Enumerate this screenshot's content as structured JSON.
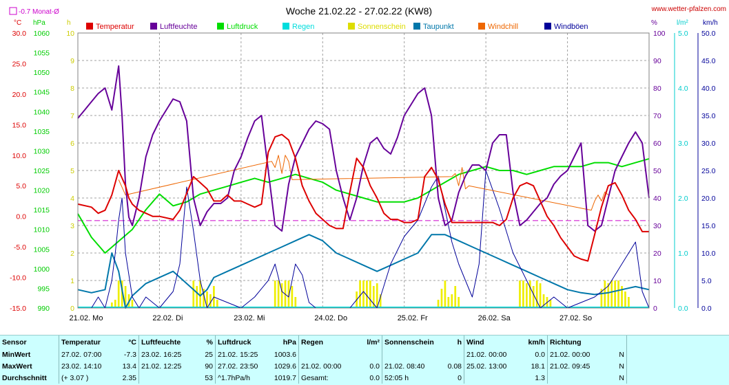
{
  "header": {
    "title": "Woche 21.02.22 - 27.02.22 (KW8)",
    "site": "www.wetter-pfalzen.com",
    "avg_note": "-0.7 Monat-Ø"
  },
  "axes": {
    "left_units": [
      "°C",
      "hPa",
      "h"
    ],
    "right_units": [
      "%",
      "l/m²",
      "km/h"
    ]
  },
  "legend": [
    {
      "label": "Temperatur",
      "color": "#dd0000"
    },
    {
      "label": "Luftfeuchte",
      "color": "#660099"
    },
    {
      "label": "Luftdruck",
      "color": "#00dd00"
    },
    {
      "label": "Regen",
      "color": "#00dddd"
    },
    {
      "label": "Sonnenschein",
      "color": "#dddd00"
    },
    {
      "label": "Taupunkt",
      "color": "#0077aa"
    },
    {
      "label": "Windchill",
      "color": "#ee6600"
    },
    {
      "label": "Windböen",
      "color": "#000099"
    }
  ],
  "chart_data": {
    "type": "line",
    "title": "Woche 21.02.22 - 27.02.22 (KW8)",
    "x": {
      "range_hours": [
        0,
        168
      ],
      "day_labels": [
        "21.02. Mo",
        "22.02. Di",
        "23.02. Mi",
        "24.02. Do",
        "25.02. Fr",
        "26.02. Sa",
        "27.02. So"
      ]
    },
    "axes": {
      "temperature_c": {
        "ticks": [
          "30.0",
          "25.0",
          "20.0",
          "15.0",
          "10.0",
          "5.0",
          "0.0",
          "-5.0",
          "-10.0",
          "-15.0"
        ],
        "range": [
          -15,
          30
        ],
        "color": "#dd0000"
      },
      "pressure_hpa": {
        "ticks": [
          "1060",
          "1055",
          "1050",
          "1045",
          "1040",
          "1035",
          "1030",
          "1025",
          "1020",
          "1015",
          "1010",
          "1005",
          "1000",
          "995",
          "990"
        ],
        "range": [
          990,
          1060
        ],
        "color": "#00cc00"
      },
      "sunshine_h": {
        "ticks": [
          "10",
          "9",
          "8",
          "7",
          "6",
          "5",
          "4",
          "3",
          "2",
          "1",
          "0"
        ],
        "range": [
          0,
          10
        ],
        "color": "#cccc00"
      },
      "humidity_pct": {
        "ticks": [
          "100",
          "90",
          "80",
          "70",
          "60",
          "50",
          "40",
          "30",
          "20",
          "10",
          "0"
        ],
        "range": [
          0,
          100
        ],
        "color": "#660099"
      },
      "rain_lm2": {
        "ticks": [
          "5.0",
          "4.0",
          "3.0",
          "2.0",
          "1.0",
          "0.0"
        ],
        "range": [
          0,
          5
        ],
        "color": "#00cccc"
      },
      "wind_kmh": {
        "ticks": [
          "50.0",
          "45.0",
          "40.0",
          "35.0",
          "30.0",
          "25.0",
          "20.0",
          "15.0",
          "10.0",
          "5.0",
          "0.0"
        ],
        "range": [
          0,
          50
        ],
        "color": "#000099"
      }
    },
    "monthly_avg_temp": -0.7,
    "series": [
      {
        "name": "Temperatur",
        "color": "#dd0000",
        "axis": "temperature_c",
        "x": [
          0,
          4,
          6,
          8,
          10,
          12,
          14,
          15,
          16,
          18,
          20,
          22,
          24,
          28,
          30,
          34,
          38,
          40,
          42,
          44,
          46,
          48,
          50,
          52,
          54,
          56,
          58,
          60,
          62,
          64,
          66,
          68,
          70,
          72,
          74,
          76,
          78,
          80,
          82,
          84,
          86,
          88,
          90,
          92,
          94,
          96,
          98,
          100,
          102,
          104,
          106,
          108,
          110,
          112,
          114,
          116,
          118,
          120,
          122,
          124,
          126,
          128,
          130,
          132,
          134,
          136,
          138,
          140,
          142,
          144,
          146,
          148,
          150,
          152,
          154,
          156,
          158,
          160,
          162,
          164,
          166,
          168
        ],
        "y": [
          2.0,
          1.5,
          0.5,
          1.0,
          3.5,
          7.5,
          5.0,
          3.0,
          2.0,
          1.0,
          0.5,
          0.0,
          0.0,
          -0.5,
          1.0,
          6.5,
          4.5,
          2.5,
          2.5,
          3.5,
          2.5,
          2.5,
          2.0,
          1.5,
          2.0,
          10.5,
          13.0,
          13.4,
          12.5,
          9.5,
          5.0,
          2.5,
          0.5,
          -0.5,
          -1.5,
          -2.0,
          -2.0,
          4.0,
          9.5,
          8.0,
          5.0,
          3.0,
          0.5,
          -0.5,
          -0.5,
          -1.0,
          -1.0,
          -0.5,
          6.5,
          8.0,
          6.0,
          2.0,
          -1.0,
          -1.0,
          -1.0,
          -1.0,
          -1.0,
          -1.0,
          -1.0,
          -1.5,
          -0.5,
          3.0,
          5.0,
          5.5,
          5.0,
          2.5,
          0.0,
          -1.5,
          -3.5,
          -5.0,
          -6.5,
          -7.0,
          -7.3,
          -3.0,
          1.5,
          5.0,
          5.5,
          3.5,
          1.0,
          -0.5,
          -2.5,
          -2.5
        ]
      },
      {
        "name": "Luftfeuchte",
        "color": "#660099",
        "axis": "humidity_pct",
        "x": [
          0,
          2,
          4,
          6,
          8,
          10,
          12,
          13,
          14,
          15,
          16,
          18,
          20,
          22,
          24,
          26,
          28,
          30,
          32,
          34,
          36,
          38,
          40,
          42,
          44,
          46,
          48,
          50,
          52,
          54,
          56,
          58,
          60,
          62,
          64,
          66,
          68,
          70,
          72,
          74,
          76,
          78,
          80,
          82,
          84,
          86,
          88,
          90,
          92,
          94,
          96,
          98,
          100,
          102,
          104,
          106,
          108,
          110,
          112,
          114,
          116,
          118,
          120,
          122,
          124,
          126,
          128,
          130,
          132,
          134,
          136,
          138,
          140,
          142,
          144,
          146,
          148,
          150,
          152,
          154,
          156,
          158,
          160,
          162,
          164,
          166,
          168
        ],
        "y": [
          69,
          72,
          75,
          78,
          80,
          72,
          88,
          70,
          45,
          33,
          30,
          40,
          55,
          63,
          68,
          72,
          76,
          75,
          68,
          40,
          30,
          35,
          38,
          38,
          40,
          50,
          55,
          62,
          68,
          70,
          50,
          30,
          28,
          45,
          55,
          60,
          65,
          68,
          67,
          65,
          50,
          40,
          32,
          40,
          52,
          60,
          62,
          58,
          56,
          62,
          70,
          74,
          78,
          80,
          70,
          40,
          30,
          32,
          42,
          48,
          52,
          52,
          50,
          60,
          63,
          63,
          42,
          30,
          32,
          35,
          38,
          40,
          45,
          48,
          50,
          55,
          60,
          30,
          28,
          30,
          40,
          50,
          55,
          60,
          64,
          60,
          40
        ]
      },
      {
        "name": "Luftdruck",
        "color": "#00dd00",
        "axis": "pressure_hpa",
        "x": [
          0,
          4,
          8,
          12,
          16,
          20,
          24,
          28,
          32,
          36,
          40,
          44,
          48,
          52,
          56,
          60,
          64,
          68,
          72,
          76,
          80,
          84,
          88,
          92,
          96,
          100,
          104,
          108,
          112,
          116,
          120,
          124,
          128,
          132,
          136,
          140,
          144,
          148,
          152,
          156,
          160,
          164,
          168
        ],
        "y": [
          1014,
          1008,
          1004,
          1007,
          1010,
          1015,
          1019,
          1016,
          1017,
          1019,
          1020,
          1021,
          1022,
          1023,
          1022,
          1023,
          1024,
          1023,
          1022,
          1020,
          1019,
          1018,
          1017,
          1017,
          1017,
          1018,
          1020,
          1022,
          1024,
          1025,
          1026,
          1025,
          1025,
          1024,
          1025,
          1026,
          1026,
          1026,
          1027,
          1027,
          1026,
          1027,
          1028
        ]
      },
      {
        "name": "Taupunkt",
        "color": "#0077aa",
        "axis": "temperature_c",
        "x": [
          0,
          4,
          8,
          10,
          12,
          14,
          16,
          18,
          20,
          24,
          28,
          32,
          34,
          36,
          38,
          40,
          44,
          48,
          52,
          56,
          60,
          64,
          68,
          72,
          76,
          80,
          84,
          88,
          92,
          96,
          100,
          104,
          108,
          112,
          116,
          120,
          124,
          128,
          132,
          136,
          140,
          144,
          148,
          152,
          156,
          160,
          164,
          168
        ],
        "y": [
          -12,
          -12.5,
          -12,
          -6,
          -9,
          -15,
          -13,
          -12,
          -11,
          -10,
          -9,
          -11,
          -12,
          -13,
          -12,
          -10,
          -9,
          -8,
          -7,
          -6,
          -5,
          -4,
          -3,
          -4,
          -6,
          -7,
          -8,
          -9,
          -8,
          -7,
          -6,
          -3,
          -3,
          -4,
          -5,
          -6,
          -7,
          -8,
          -9,
          -10,
          -11,
          -12,
          -12.5,
          -12.8,
          -12.5,
          -12,
          -11.5,
          -12
        ]
      },
      {
        "name": "Windchill",
        "color": "#ee6600",
        "axis": "temperature_c",
        "x": [
          12,
          14,
          57,
          58,
          59,
          60,
          61,
          62,
          63,
          110,
          111,
          112,
          113,
          114,
          115,
          151,
          152,
          153,
          154,
          155,
          156
        ],
        "y": [
          6.0,
          3.5,
          9.0,
          8.0,
          10.0,
          7.0,
          10.0,
          9.0,
          6.0,
          6.5,
          7.0,
          5.0,
          8.0,
          4.5,
          5.0,
          1.0,
          2.5,
          3.5,
          2.5,
          4.0,
          3.5
        ]
      },
      {
        "name": "Windböen",
        "color": "#000099",
        "axis": "wind_kmh",
        "x": [
          0,
          4,
          6,
          8,
          10,
          11,
          12,
          13,
          14,
          16,
          18,
          20,
          24,
          28,
          30,
          32,
          34,
          36,
          38,
          40,
          44,
          48,
          52,
          56,
          58,
          60,
          62,
          64,
          66,
          68,
          70,
          72,
          76,
          80,
          84,
          88,
          92,
          96,
          100,
          104,
          106,
          108,
          110,
          112,
          114,
          116,
          118,
          120,
          124,
          128,
          132,
          136,
          140,
          144,
          148,
          152,
          156,
          160,
          164,
          166,
          168
        ],
        "y": [
          0,
          0,
          2,
          0,
          5,
          10,
          16,
          20,
          10,
          2,
          0,
          2,
          0,
          3,
          8,
          22,
          14,
          5,
          0,
          2,
          1,
          0,
          2,
          5,
          8,
          3,
          2,
          8,
          6,
          1,
          0,
          0,
          0,
          0,
          3,
          0,
          8,
          13,
          16,
          22,
          24,
          18,
          12,
          8,
          5,
          2,
          8,
          25,
          18,
          10,
          5,
          0,
          2,
          0,
          1,
          2,
          4,
          8,
          12,
          3,
          0
        ]
      }
    ],
    "sunshine": {
      "name": "Sonnenschein",
      "color": "#eeee00",
      "axis": "sunshine_h",
      "hours": [
        10,
        11,
        12,
        13,
        14,
        15,
        16,
        34,
        35,
        36,
        37,
        38,
        39,
        40,
        41,
        58,
        59,
        60,
        61,
        62,
        63,
        64,
        82,
        83,
        84,
        85,
        86,
        87,
        88,
        89,
        106,
        107,
        108,
        109,
        110,
        111,
        112,
        130,
        131,
        132,
        133,
        134,
        135,
        136,
        137,
        138,
        139,
        154,
        155,
        156,
        157,
        158,
        159,
        160,
        161,
        162
      ],
      "values": [
        0.2,
        0.3,
        1.0,
        1.0,
        0.8,
        0.5,
        0.3,
        1.0,
        0.8,
        1.0,
        0.7,
        0.6,
        0.5,
        0.8,
        0.3,
        1.0,
        1.0,
        0.9,
        1.0,
        1.0,
        0.8,
        0.4,
        0.6,
        1.0,
        1.0,
        1.0,
        1.0,
        0.8,
        0.9,
        0.5,
        0.3,
        0.7,
        1.0,
        0.4,
        0.5,
        0.8,
        0.4,
        1.0,
        1.0,
        0.9,
        1.0,
        0.8,
        1.0,
        0.9,
        0.5,
        0.4,
        0.3,
        0.7,
        1.0,
        0.9,
        1.0,
        1.0,
        1.0,
        0.8,
        0.6,
        0.4
      ]
    }
  },
  "stats": {
    "headers": {
      "sensor": "Sensor",
      "temp": "Temperatur",
      "temp_unit": "°C",
      "hum": "Luftfeuchte",
      "hum_unit": "%",
      "press": "Luftdruck",
      "press_unit": "hPa",
      "rain": "Regen",
      "rain_unit": "l/m²",
      "sun": "Sonnenschein",
      "sun_unit": "h",
      "wind": "Wind",
      "wind_unit": "km/h",
      "dir": "Richtung"
    },
    "rows": [
      {
        "label": "MinWert",
        "temp_t": "27.02.  07:00",
        "temp_v": "-7.3",
        "hum_t": "23.02.  16:25",
        "hum_v": "25",
        "press_t": "21.02.  15:25",
        "press_v": "1003.6",
        "rain_t": "",
        "rain_v": "",
        "sun_t": "",
        "sun_v": "",
        "wind_t": "21.02.  00:00",
        "wind_v": "0.0",
        "dir_t": "21.02.  00:00",
        "dir_v": "N"
      },
      {
        "label": "MaxWert",
        "temp_t": "23.02.  14:10",
        "temp_v": "13.4",
        "hum_t": "21.02.  12:25",
        "hum_v": "90",
        "press_t": "27.02.  23:50",
        "press_v": "1029.6",
        "rain_t": "21.02.  00:00",
        "rain_v": "0.0",
        "sun_t": "21.02.  08:40",
        "sun_v": "0.08",
        "wind_t": "25.02.  13:00",
        "wind_v": "18.1",
        "dir_t": "21.02.  09:45",
        "dir_v": "N"
      },
      {
        "label": "Durchschnitt",
        "temp_t": "(+ 3.07 )",
        "temp_v": "2.35",
        "hum_t": "",
        "hum_v": "53",
        "press_t": "^1.7hPa/h",
        "press_v": "1019.7",
        "rain_t": "Gesamt:",
        "rain_v": "0.0",
        "sun_t": "52:05 h",
        "sun_v": "0",
        "wind_t": "",
        "wind_v": "1.3",
        "dir_t": "",
        "dir_v": "N"
      }
    ]
  }
}
